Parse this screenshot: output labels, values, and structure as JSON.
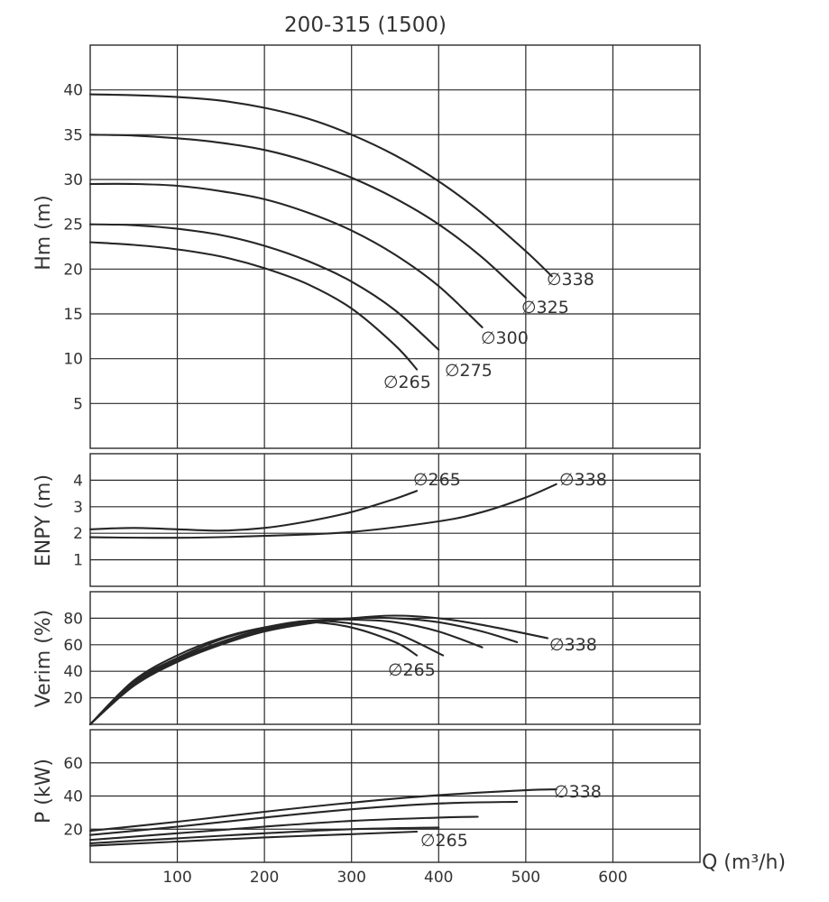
{
  "chart_data": {
    "type": "line",
    "title": "200-315 (1500)",
    "xlabel": "Q (m³/h)",
    "x_ticks": [
      "100",
      "200",
      "300",
      "400",
      "500",
      "600"
    ],
    "xlim": [
      0,
      700
    ],
    "diameter_symbol": "∅",
    "panels": [
      {
        "id": "head",
        "ylabel": "Hm (m)",
        "ylim": [
          0,
          40
        ],
        "y_ticks": [
          "5",
          "10",
          "15",
          "20",
          "25",
          "30",
          "35",
          "40"
        ],
        "series": [
          {
            "name": "338",
            "x": [
              0,
              50,
              100,
              150,
              200,
              250,
              300,
              350,
              400,
              450,
              500,
              530
            ],
            "y": [
              39.5,
              39.4,
              39.2,
              38.8,
              38.0,
              36.8,
              35.0,
              32.7,
              29.8,
              26.2,
              22.0,
              19.2
            ]
          },
          {
            "name": "325",
            "x": [
              0,
              50,
              100,
              150,
              200,
              250,
              300,
              350,
              400,
              450,
              500
            ],
            "y": [
              35.0,
              34.9,
              34.6,
              34.1,
              33.3,
              32.0,
              30.2,
              27.9,
              25.0,
              21.3,
              16.8
            ]
          },
          {
            "name": "300",
            "x": [
              0,
              50,
              100,
              150,
              200,
              250,
              300,
              350,
              400,
              450
            ],
            "y": [
              29.5,
              29.5,
              29.3,
              28.7,
              27.8,
              26.3,
              24.3,
              21.6,
              18.1,
              13.5
            ]
          },
          {
            "name": "275",
            "x": [
              0,
              50,
              100,
              150,
              200,
              250,
              300,
              350,
              400
            ],
            "y": [
              25.0,
              24.9,
              24.5,
              23.8,
              22.6,
              20.9,
              18.6,
              15.4,
              11.0
            ]
          },
          {
            "name": "265",
            "x": [
              0,
              50,
              100,
              150,
              200,
              250,
              300,
              350,
              375
            ],
            "y": [
              23.0,
              22.7,
              22.2,
              21.4,
              20.1,
              18.3,
              15.6,
              11.5,
              8.8
            ]
          }
        ],
        "label_texts": [
          "338",
          "325",
          "300",
          "275",
          "265"
        ]
      },
      {
        "id": "npsh",
        "ylabel": "ENPY (m)",
        "ylim": [
          0,
          5
        ],
        "y_ticks": [
          "1",
          "2",
          "3",
          "4"
        ],
        "series": [
          {
            "name": "265",
            "x": [
              0,
              50,
              100,
              150,
              200,
              250,
              300,
              350,
              375
            ],
            "y": [
              2.15,
              2.2,
              2.15,
              2.1,
              2.2,
              2.45,
              2.8,
              3.3,
              3.6
            ]
          },
          {
            "name": "338",
            "x": [
              0,
              100,
              200,
              300,
              400,
              450,
              500,
              535
            ],
            "y": [
              1.85,
              1.83,
              1.9,
              2.05,
              2.45,
              2.8,
              3.35,
              3.85
            ]
          }
        ],
        "label_texts": [
          "265",
          "338"
        ]
      },
      {
        "id": "efficiency",
        "ylabel": "Verim (%)",
        "ylim": [
          0,
          100
        ],
        "y_ticks": [
          "20",
          "40",
          "60",
          "80"
        ],
        "series": [
          {
            "name": "265",
            "x": [
              0,
              50,
              100,
              150,
              200,
              250,
              300,
              350,
              375
            ],
            "y": [
              0,
              33,
              52,
              65,
              73,
              77,
              73,
              62,
              52
            ]
          },
          {
            "name": "275",
            "x": [
              0,
              50,
              100,
              150,
              200,
              250,
              300,
              350,
              405
            ],
            "y": [
              0,
              32,
              50,
              64,
              73,
              78,
              76,
              69,
              52
            ]
          },
          {
            "name": "300",
            "x": [
              0,
              50,
              100,
              150,
              200,
              250,
              300,
              350,
              400,
              450
            ],
            "y": [
              0,
              31,
              49,
              62,
              72,
              78,
              79,
              77,
              70,
              58
            ]
          },
          {
            "name": "325",
            "x": [
              0,
              50,
              100,
              150,
              200,
              250,
              300,
              350,
              400,
              450,
              490
            ],
            "y": [
              0,
              30,
              48,
              61,
              71,
              77,
              80,
              80,
              77,
              70,
              62
            ]
          },
          {
            "name": "338",
            "x": [
              0,
              50,
              100,
              150,
              200,
              250,
              300,
              350,
              400,
              450,
              525
            ],
            "y": [
              0,
              29,
              47,
              60,
              70,
              76,
              80,
              82,
              80,
              75,
              65
            ]
          }
        ],
        "label_texts": [
          "338",
          "265"
        ]
      },
      {
        "id": "power",
        "ylabel": "P (kW)",
        "ylim": [
          0,
          80
        ],
        "y_ticks": [
          "20",
          "40",
          "60"
        ],
        "series": [
          {
            "name": "338",
            "x": [
              0,
              100,
              200,
              300,
              400,
              500,
              535
            ],
            "y": [
              19.0,
              24.5,
              30.5,
              36.0,
              40.5,
              43.5,
              44.0
            ]
          },
          {
            "name": "325",
            "x": [
              0,
              100,
              200,
              300,
              400,
              490
            ],
            "y": [
              16.5,
              21.5,
              27.0,
              32.0,
              35.5,
              36.5
            ]
          },
          {
            "name": "300",
            "x": [
              0,
              100,
              200,
              300,
              400,
              445
            ],
            "y": [
              13.5,
              17.5,
              21.5,
              25.0,
              27.0,
              27.5
            ]
          },
          {
            "name": "275",
            "x": [
              0,
              100,
              200,
              300,
              400
            ],
            "y": [
              11.5,
              14.5,
              17.5,
              20.0,
              21.0
            ]
          },
          {
            "name": "265",
            "x": [
              0,
              100,
              200,
              300,
              375
            ],
            "y": [
              10.0,
              12.5,
              15.0,
              17.0,
              18.5
            ]
          }
        ],
        "label_texts": [
          "338",
          "265"
        ]
      }
    ]
  }
}
